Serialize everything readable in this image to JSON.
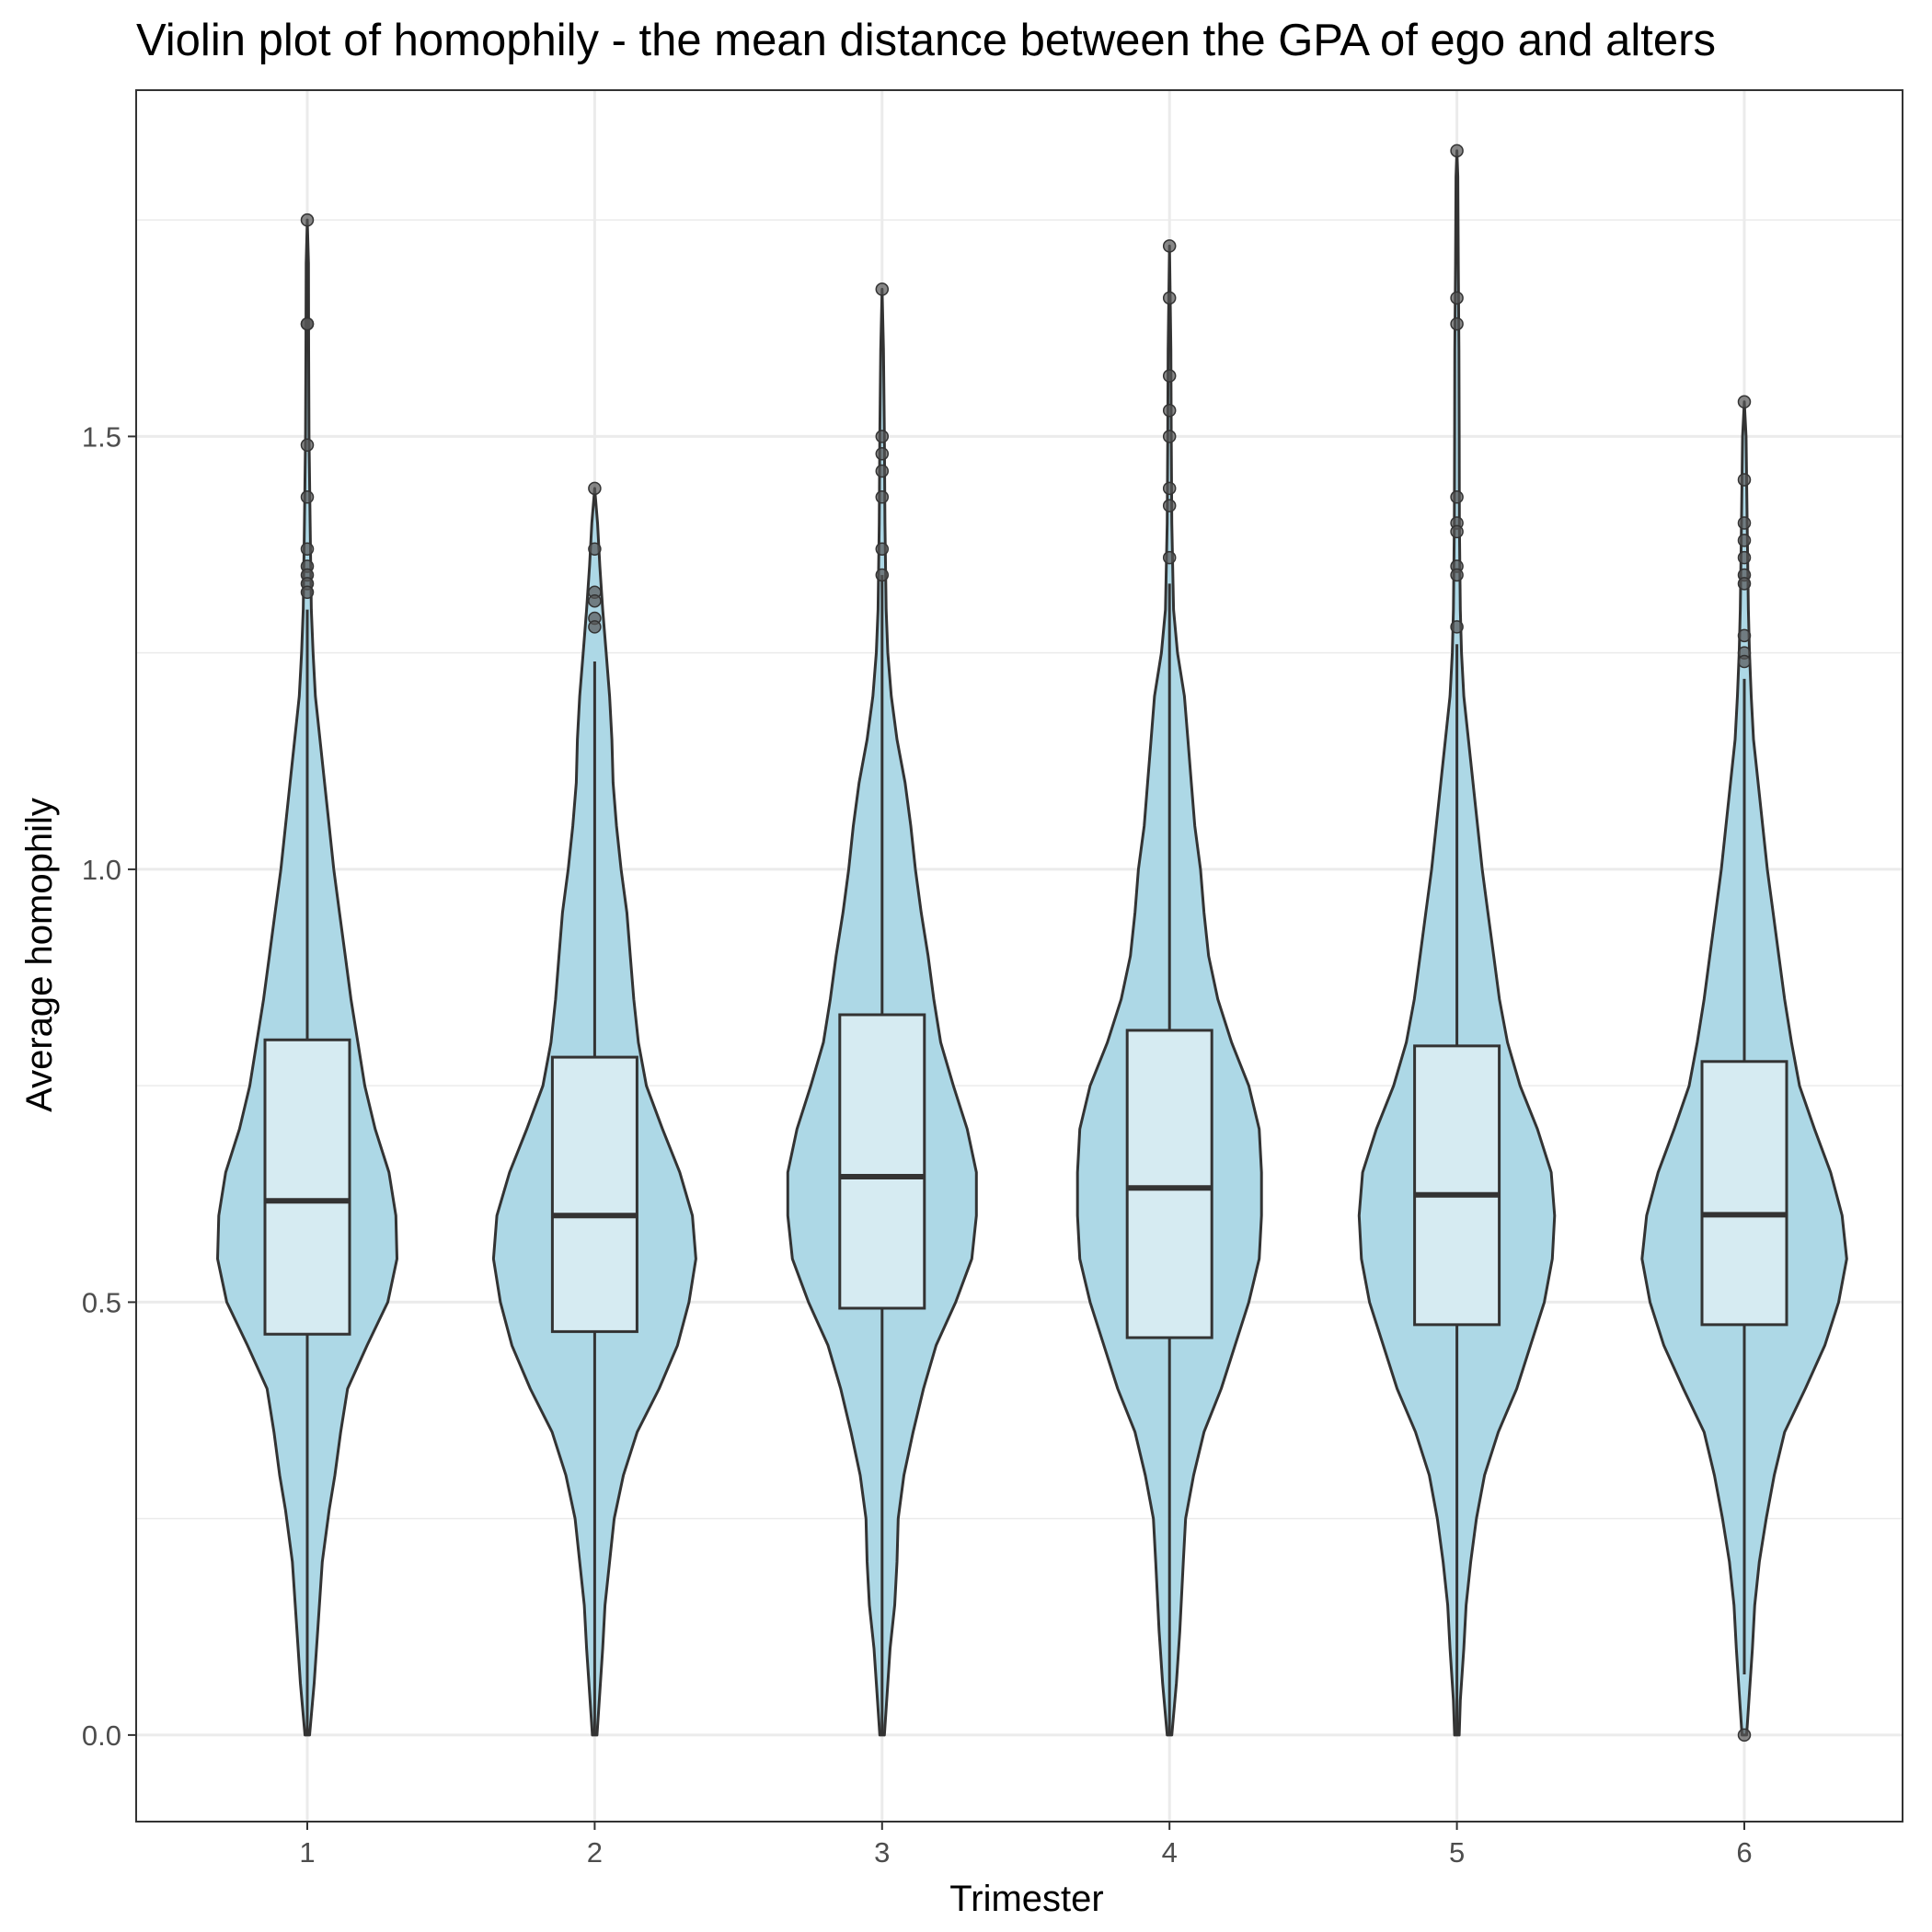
{
  "chart_data": {
    "type": "violin",
    "title": "Violin plot of homophily - the mean distance between the GPA of ego and alters",
    "xlabel": "Trimester",
    "ylabel": "Average homophily",
    "categories": [
      "1",
      "2",
      "3",
      "4",
      "5",
      "6"
    ],
    "y_ticks": [
      "0.0",
      "0.5",
      "1.0",
      "1.5"
    ],
    "ylim": [
      -0.1,
      1.9
    ],
    "grid": true,
    "colors": {
      "violin_fill": "#add8e6",
      "box_fill": "#d6ebf2",
      "outline": "#333333",
      "outlier": "#555555",
      "grid": "#ebebeb",
      "panel_border": "#333333"
    },
    "boxes": [
      {
        "trimester": "1",
        "q1": 0.463,
        "median": 0.617,
        "q3": 0.803,
        "whisker_low": 0.0,
        "whisker_high": 1.3
      },
      {
        "trimester": "2",
        "q1": 0.466,
        "median": 0.6,
        "q3": 0.783,
        "whisker_low": 0.0,
        "whisker_high": 1.24
      },
      {
        "trimester": "3",
        "q1": 0.493,
        "median": 0.645,
        "q3": 0.832,
        "whisker_low": 0.0,
        "whisker_high": 1.34
      },
      {
        "trimester": "4",
        "q1": 0.459,
        "median": 0.632,
        "q3": 0.814,
        "whisker_low": 0.0,
        "whisker_high": 1.33
      },
      {
        "trimester": "5",
        "q1": 0.474,
        "median": 0.624,
        "q3": 0.796,
        "whisker_low": 0.0,
        "whisker_high": 1.26
      },
      {
        "trimester": "6",
        "q1": 0.474,
        "median": 0.601,
        "q3": 0.778,
        "whisker_low": 0.07,
        "whisker_high": 1.22
      }
    ],
    "outliers": [
      {
        "trimester": "1",
        "values": [
          1.75,
          1.63,
          1.63,
          1.49,
          1.43,
          1.37,
          1.35,
          1.34,
          1.33,
          1.32
        ]
      },
      {
        "trimester": "2",
        "values": [
          1.44,
          1.37,
          1.32,
          1.31,
          1.29,
          1.28
        ]
      },
      {
        "trimester": "3",
        "values": [
          1.67,
          1.5,
          1.48,
          1.46,
          1.43,
          1.37,
          1.34
        ]
      },
      {
        "trimester": "4",
        "values": [
          1.72,
          1.66,
          1.57,
          1.53,
          1.5,
          1.44,
          1.42,
          1.36
        ]
      },
      {
        "trimester": "5",
        "values": [
          1.83,
          1.66,
          1.63,
          1.43,
          1.4,
          1.39,
          1.35,
          1.34,
          1.28
        ]
      },
      {
        "trimester": "6",
        "values": [
          1.54,
          1.45,
          1.4,
          1.38,
          1.36,
          1.34,
          1.33,
          1.27,
          1.25,
          1.24,
          0.0
        ]
      }
    ],
    "violins": [
      {
        "trimester": "1",
        "profile": [
          [
            0.0,
            0.02
          ],
          [
            0.06,
            0.06
          ],
          [
            0.12,
            0.09
          ],
          [
            0.2,
            0.13
          ],
          [
            0.26,
            0.19
          ],
          [
            0.3,
            0.24
          ],
          [
            0.35,
            0.29
          ],
          [
            0.4,
            0.35
          ],
          [
            0.45,
            0.52
          ],
          [
            0.5,
            0.7
          ],
          [
            0.55,
            0.78
          ],
          [
            0.6,
            0.77
          ],
          [
            0.65,
            0.71
          ],
          [
            0.7,
            0.59
          ],
          [
            0.75,
            0.5
          ],
          [
            0.8,
            0.44
          ],
          [
            0.85,
            0.38
          ],
          [
            0.9,
            0.33
          ],
          [
            0.95,
            0.28
          ],
          [
            1.0,
            0.23
          ],
          [
            1.05,
            0.19
          ],
          [
            1.1,
            0.15
          ],
          [
            1.15,
            0.11
          ],
          [
            1.2,
            0.07
          ],
          [
            1.25,
            0.05
          ],
          [
            1.3,
            0.035
          ],
          [
            1.4,
            0.025
          ],
          [
            1.5,
            0.015
          ],
          [
            1.6,
            0.012
          ],
          [
            1.7,
            0.01
          ],
          [
            1.75,
            0.0
          ]
        ]
      },
      {
        "trimester": "2",
        "profile": [
          [
            0.0,
            0.02
          ],
          [
            0.04,
            0.04
          ],
          [
            0.1,
            0.07
          ],
          [
            0.15,
            0.09
          ],
          [
            0.2,
            0.13
          ],
          [
            0.25,
            0.17
          ],
          [
            0.3,
            0.25
          ],
          [
            0.35,
            0.37
          ],
          [
            0.4,
            0.56
          ],
          [
            0.45,
            0.72
          ],
          [
            0.5,
            0.82
          ],
          [
            0.55,
            0.88
          ],
          [
            0.6,
            0.85
          ],
          [
            0.65,
            0.74
          ],
          [
            0.7,
            0.59
          ],
          [
            0.75,
            0.45
          ],
          [
            0.8,
            0.38
          ],
          [
            0.85,
            0.34
          ],
          [
            0.9,
            0.31
          ],
          [
            0.95,
            0.28
          ],
          [
            1.0,
            0.23
          ],
          [
            1.05,
            0.19
          ],
          [
            1.1,
            0.16
          ],
          [
            1.15,
            0.15
          ],
          [
            1.2,
            0.13
          ],
          [
            1.25,
            0.1
          ],
          [
            1.3,
            0.07
          ],
          [
            1.35,
            0.045
          ],
          [
            1.4,
            0.025
          ],
          [
            1.44,
            0.0
          ]
        ]
      },
      {
        "trimester": "3",
        "profile": [
          [
            0.0,
            0.02
          ],
          [
            0.04,
            0.04
          ],
          [
            0.1,
            0.07
          ],
          [
            0.15,
            0.11
          ],
          [
            0.2,
            0.13
          ],
          [
            0.25,
            0.14
          ],
          [
            0.3,
            0.19
          ],
          [
            0.35,
            0.27
          ],
          [
            0.4,
            0.36
          ],
          [
            0.45,
            0.47
          ],
          [
            0.5,
            0.64
          ],
          [
            0.55,
            0.78
          ],
          [
            0.6,
            0.82
          ],
          [
            0.65,
            0.82
          ],
          [
            0.7,
            0.74
          ],
          [
            0.75,
            0.62
          ],
          [
            0.8,
            0.51
          ],
          [
            0.85,
            0.45
          ],
          [
            0.9,
            0.4
          ],
          [
            0.95,
            0.34
          ],
          [
            1.0,
            0.29
          ],
          [
            1.05,
            0.25
          ],
          [
            1.1,
            0.2
          ],
          [
            1.15,
            0.13
          ],
          [
            1.2,
            0.08
          ],
          [
            1.25,
            0.05
          ],
          [
            1.3,
            0.035
          ],
          [
            1.4,
            0.025
          ],
          [
            1.5,
            0.02
          ],
          [
            1.6,
            0.012
          ],
          [
            1.67,
            0.0
          ]
        ]
      },
      {
        "trimester": "4",
        "profile": [
          [
            0.0,
            0.02
          ],
          [
            0.06,
            0.06
          ],
          [
            0.12,
            0.09
          ],
          [
            0.2,
            0.12
          ],
          [
            0.25,
            0.14
          ],
          [
            0.3,
            0.21
          ],
          [
            0.35,
            0.3
          ],
          [
            0.4,
            0.45
          ],
          [
            0.45,
            0.57
          ],
          [
            0.5,
            0.69
          ],
          [
            0.55,
            0.78
          ],
          [
            0.6,
            0.8
          ],
          [
            0.65,
            0.8
          ],
          [
            0.7,
            0.78
          ],
          [
            0.75,
            0.69
          ],
          [
            0.8,
            0.54
          ],
          [
            0.85,
            0.42
          ],
          [
            0.9,
            0.34
          ],
          [
            0.95,
            0.3
          ],
          [
            1.0,
            0.27
          ],
          [
            1.05,
            0.22
          ],
          [
            1.1,
            0.19
          ],
          [
            1.15,
            0.16
          ],
          [
            1.2,
            0.13
          ],
          [
            1.25,
            0.07
          ],
          [
            1.3,
            0.035
          ],
          [
            1.4,
            0.02
          ],
          [
            1.5,
            0.015
          ],
          [
            1.6,
            0.012
          ],
          [
            1.72,
            0.0
          ]
        ]
      },
      {
        "trimester": "5",
        "profile": [
          [
            0.0,
            0.02
          ],
          [
            0.04,
            0.03
          ],
          [
            0.1,
            0.06
          ],
          [
            0.15,
            0.08
          ],
          [
            0.2,
            0.12
          ],
          [
            0.25,
            0.17
          ],
          [
            0.3,
            0.24
          ],
          [
            0.35,
            0.36
          ],
          [
            0.4,
            0.52
          ],
          [
            0.45,
            0.64
          ],
          [
            0.5,
            0.76
          ],
          [
            0.55,
            0.83
          ],
          [
            0.6,
            0.85
          ],
          [
            0.65,
            0.82
          ],
          [
            0.7,
            0.7
          ],
          [
            0.75,
            0.55
          ],
          [
            0.8,
            0.44
          ],
          [
            0.85,
            0.37
          ],
          [
            0.9,
            0.32
          ],
          [
            0.95,
            0.27
          ],
          [
            1.0,
            0.22
          ],
          [
            1.05,
            0.18
          ],
          [
            1.1,
            0.14
          ],
          [
            1.15,
            0.1
          ],
          [
            1.2,
            0.06
          ],
          [
            1.25,
            0.04
          ],
          [
            1.3,
            0.03
          ],
          [
            1.4,
            0.022
          ],
          [
            1.5,
            0.02
          ],
          [
            1.6,
            0.018
          ],
          [
            1.7,
            0.012
          ],
          [
            1.8,
            0.008
          ],
          [
            1.83,
            0.0
          ]
        ]
      },
      {
        "trimester": "6",
        "profile": [
          [
            0.0,
            0.02
          ],
          [
            0.04,
            0.04
          ],
          [
            0.1,
            0.07
          ],
          [
            0.15,
            0.09
          ],
          [
            0.2,
            0.13
          ],
          [
            0.25,
            0.19
          ],
          [
            0.3,
            0.26
          ],
          [
            0.35,
            0.35
          ],
          [
            0.4,
            0.53
          ],
          [
            0.45,
            0.7
          ],
          [
            0.5,
            0.82
          ],
          [
            0.55,
            0.89
          ],
          [
            0.6,
            0.85
          ],
          [
            0.65,
            0.75
          ],
          [
            0.7,
            0.61
          ],
          [
            0.75,
            0.48
          ],
          [
            0.8,
            0.41
          ],
          [
            0.85,
            0.35
          ],
          [
            0.9,
            0.3
          ],
          [
            0.95,
            0.25
          ],
          [
            1.0,
            0.2
          ],
          [
            1.05,
            0.16
          ],
          [
            1.1,
            0.12
          ],
          [
            1.15,
            0.08
          ],
          [
            1.2,
            0.06
          ],
          [
            1.25,
            0.045
          ],
          [
            1.3,
            0.035
          ],
          [
            1.4,
            0.025
          ],
          [
            1.5,
            0.015
          ],
          [
            1.54,
            0.0
          ]
        ]
      }
    ]
  }
}
